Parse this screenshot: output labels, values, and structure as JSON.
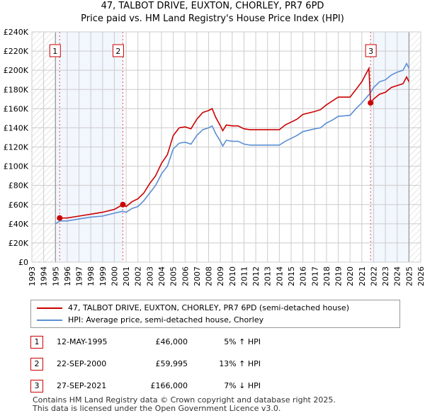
{
  "title": "47, TALBOT DRIVE, EUXTON, CHORLEY, PR7 6PD",
  "subtitle": "Price paid vs. HM Land Registry's House Price Index (HPI)",
  "chart_data": {
    "type": "line",
    "xlim": [
      1993,
      2026
    ],
    "ylim": [
      0,
      240000
    ],
    "x_ticks": [
      "1993",
      "1994",
      "1995",
      "1996",
      "1997",
      "1998",
      "1999",
      "2000",
      "2001",
      "2002",
      "2003",
      "2004",
      "2005",
      "2006",
      "2007",
      "2008",
      "2009",
      "2010",
      "2011",
      "2012",
      "2013",
      "2014",
      "2015",
      "2016",
      "2017",
      "2018",
      "2019",
      "2020",
      "2021",
      "2022",
      "2023",
      "2024",
      "2025",
      "2026"
    ],
    "y_ticks": [
      "£0",
      "£20K",
      "£40K",
      "£60K",
      "£80K",
      "£100K",
      "£120K",
      "£140K",
      "£160K",
      "£180K",
      "£200K",
      "£220K",
      "£240K"
    ],
    "grid": true,
    "data_range": [
      1995,
      2025
    ],
    "shaded_periods": [
      [
        1995,
        2000.72
      ],
      [
        2021.74,
        2025
      ]
    ],
    "series": [
      {
        "name": "47, TALBOT DRIVE, EUXTON, CHORLEY, PR7 6PD (semi-detached house)",
        "color": "#cc0000",
        "x": [
          1995.36,
          1996,
          1997,
          1998,
          1999,
          2000,
          2000.72,
          2001,
          2001.5,
          2002,
          2002.5,
          2003,
          2003.5,
          2004,
          2004.5,
          2005,
          2005.5,
          2006,
          2006.5,
          2007,
          2007.5,
          2008,
          2008.3,
          2008.6,
          2009,
          2009.2,
          2009.5,
          2010,
          2010.5,
          2011,
          2011.5,
          2012,
          2013,
          2014,
          2014.5,
          2015,
          2015.5,
          2016,
          2017,
          2017.5,
          2018,
          2018.5,
          2019,
          2020,
          2020.5,
          2021,
          2021.6,
          2021.74,
          2022,
          2022.5,
          2023,
          2023.5,
          2024,
          2024.5,
          2024.8,
          2025
        ],
        "y": [
          46,
          46,
          48,
          50,
          52,
          55,
          60,
          58,
          63,
          66,
          72,
          82,
          90,
          103,
          112,
          132,
          140,
          141,
          139,
          149,
          156,
          158,
          160,
          151,
          142,
          137,
          143,
          142,
          142,
          139,
          138,
          138,
          138,
          138,
          143,
          146,
          149,
          154,
          157,
          159,
          164,
          168,
          172,
          172,
          180,
          188,
          202,
          166,
          170,
          175,
          177,
          182,
          184,
          186,
          193,
          188
        ]
      },
      {
        "name": "HPI: Average price, semi-detached house, Chorley",
        "color": "#5b8fd4",
        "x": [
          1995,
          1995.4,
          1996,
          1997,
          1998,
          1999,
          2000,
          2000.7,
          2001,
          2001.5,
          2002,
          2002.5,
          2003,
          2003.5,
          2004,
          2004.5,
          2005,
          2005.5,
          2006,
          2006.5,
          2007,
          2007.5,
          2008,
          2008.3,
          2008.6,
          2009,
          2009.2,
          2009.5,
          2010,
          2010.5,
          2011,
          2011.5,
          2012,
          2013,
          2014,
          2014.5,
          2015,
          2015.5,
          2016,
          2017,
          2017.5,
          2018,
          2018.5,
          2019,
          2020,
          2020.5,
          2021,
          2021.7,
          2022,
          2022.5,
          2023,
          2023.5,
          2024,
          2024.5,
          2024.8,
          2025
        ],
        "y": [
          40,
          43,
          43,
          45,
          47,
          48,
          51,
          53,
          52,
          56,
          58,
          64,
          72,
          80,
          92,
          100,
          118,
          124,
          125,
          123,
          132,
          138,
          140,
          142,
          134,
          126,
          121,
          127,
          126,
          126,
          123,
          122,
          122,
          122,
          122,
          126,
          129,
          132,
          136,
          139,
          140,
          145,
          148,
          152,
          153,
          160,
          166,
          176,
          182,
          188,
          190,
          195,
          198,
          200,
          207,
          202
        ]
      }
    ],
    "y_unit": "thousands GBP",
    "sales": [
      {
        "label": "1",
        "x": 1995.36,
        "y": 46
      },
      {
        "label": "2",
        "x": 2000.72,
        "y": 59.995
      },
      {
        "label": "3",
        "x": 2021.74,
        "y": 166
      }
    ]
  },
  "legend": {
    "property": "47, TALBOT DRIVE, EUXTON, CHORLEY, PR7 6PD (semi-detached house)",
    "hpi": "HPI: Average price, semi-detached house, Chorley"
  },
  "transactions": [
    {
      "num": "1",
      "date": "12-MAY-1995",
      "price": "£46,000",
      "hpi": "5% ↑ HPI"
    },
    {
      "num": "2",
      "date": "22-SEP-2000",
      "price": "£59,995",
      "hpi": "13% ↑ HPI"
    },
    {
      "num": "3",
      "date": "27-SEP-2021",
      "price": "£166,000",
      "hpi": "7% ↓ HPI"
    }
  ],
  "footer": {
    "line1": "Contains HM Land Registry data © Crown copyright and database right 2025.",
    "line2": "This data is licensed under the Open Government Licence v3.0."
  }
}
